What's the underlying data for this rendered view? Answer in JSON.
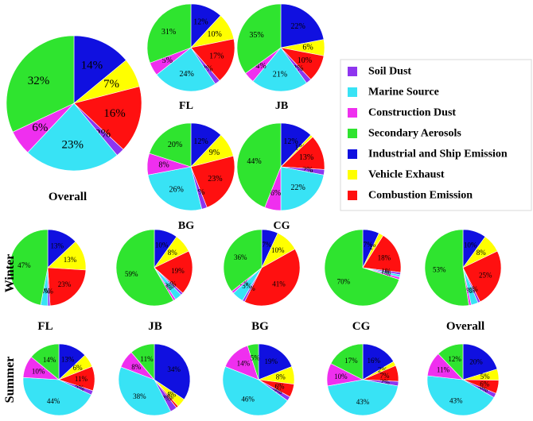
{
  "legend": {
    "items": [
      {
        "label": "Soil Dust",
        "color": "#8e35ef"
      },
      {
        "label": "Marine Source",
        "color": "#38e3f5"
      },
      {
        "label": "Construction Dust",
        "color": "#ef2fef"
      },
      {
        "label": "Secondary Aerosols",
        "color": "#2fe42f"
      },
      {
        "label": "Industrial and Ship Emission",
        "color": "#1010e0"
      },
      {
        "label": "Vehicle Exhaust",
        "color": "#ffff00"
      },
      {
        "label": "Combustion Emission",
        "color": "#ff1010"
      }
    ]
  },
  "season_labels": {
    "winter": "Winter",
    "summer": "Summer"
  },
  "chart_data": [
    {
      "type": "pie",
      "name": "Overall",
      "group": "annual",
      "slices": [
        {
          "source": "Industrial and Ship Emission",
          "value": 14,
          "label": "14%"
        },
        {
          "source": "Vehicle Exhaust",
          "value": 7,
          "label": "7%"
        },
        {
          "source": "Combustion Emission",
          "value": 16,
          "label": "16%"
        },
        {
          "source": "Soil Dust",
          "value": 2,
          "label": "2%"
        },
        {
          "source": "Marine Source",
          "value": 23,
          "label": "23%"
        },
        {
          "source": "Construction Dust",
          "value": 6,
          "label": "6%"
        },
        {
          "source": "Secondary Aerosols",
          "value": 32,
          "label": "32%"
        }
      ]
    },
    {
      "type": "pie",
      "name": "FL",
      "group": "annual",
      "slices": [
        {
          "source": "Industrial and Ship Emission",
          "value": 12,
          "label": "12%"
        },
        {
          "source": "Vehicle Exhaust",
          "value": 10,
          "label": "10%"
        },
        {
          "source": "Combustion Emission",
          "value": 17,
          "label": "17%"
        },
        {
          "source": "Soil Dust",
          "value": 2,
          "label": "2%"
        },
        {
          "source": "Marine Source",
          "value": 24,
          "label": "24%"
        },
        {
          "source": "Construction Dust",
          "value": 5,
          "label": "5%"
        },
        {
          "source": "Secondary Aerosols",
          "value": 31,
          "label": "31%"
        }
      ]
    },
    {
      "type": "pie",
      "name": "JB",
      "group": "annual",
      "slices": [
        {
          "source": "Industrial and Ship Emission",
          "value": 22,
          "label": "22%"
        },
        {
          "source": "Vehicle Exhaust",
          "value": 6,
          "label": "6%"
        },
        {
          "source": "Combustion Emission",
          "value": 10,
          "label": "10%"
        },
        {
          "source": "Soil Dust",
          "value": 2,
          "label": "2%"
        },
        {
          "source": "Marine Source",
          "value": 21,
          "label": "21%"
        },
        {
          "source": "Construction Dust",
          "value": 4,
          "label": "4%"
        },
        {
          "source": "Secondary Aerosols",
          "value": 35,
          "label": "35%"
        }
      ]
    },
    {
      "type": "pie",
      "name": "BG",
      "group": "annual",
      "slices": [
        {
          "source": "Industrial and Ship Emission",
          "value": 12,
          "label": "12%"
        },
        {
          "source": "Vehicle Exhaust",
          "value": 9,
          "label": "9%"
        },
        {
          "source": "Combustion Emission",
          "value": 23,
          "label": "23%"
        },
        {
          "source": "Soil Dust",
          "value": 2,
          "label": "2%"
        },
        {
          "source": "Marine Source",
          "value": 26,
          "label": "26%"
        },
        {
          "source": "Construction Dust",
          "value": 8,
          "label": "8%"
        },
        {
          "source": "Secondary Aerosols",
          "value": 20,
          "label": "20%"
        }
      ]
    },
    {
      "type": "pie",
      "name": "CG",
      "group": "annual",
      "slices": [
        {
          "source": "Industrial and Ship Emission",
          "value": 12,
          "label": "12%"
        },
        {
          "source": "Vehicle Exhaust",
          "value": 1,
          "label": "1%"
        },
        {
          "source": "Combustion Emission",
          "value": 13,
          "label": "13%"
        },
        {
          "source": "Soil Dust",
          "value": 2,
          "label": "2%"
        },
        {
          "source": "Marine Source",
          "value": 22,
          "label": "22%"
        },
        {
          "source": "Construction Dust",
          "value": 6,
          "label": "6%"
        },
        {
          "source": "Secondary Aerosols",
          "value": 44,
          "label": "44%"
        }
      ]
    },
    {
      "type": "pie",
      "name": "FL",
      "group": "winter",
      "slices": [
        {
          "source": "Industrial and Ship Emission",
          "value": 13,
          "label": "13%"
        },
        {
          "source": "Vehicle Exhaust",
          "value": 13,
          "label": "13%"
        },
        {
          "source": "Combustion Emission",
          "value": 23,
          "label": "23%"
        },
        {
          "source": "Soil Dust",
          "value": 1,
          "label": "1%"
        },
        {
          "source": "Marine Source",
          "value": 3,
          "label": "3%"
        },
        {
          "source": "Construction Dust",
          "value": 0,
          "label": "0%"
        },
        {
          "source": "Secondary Aerosols",
          "value": 47,
          "label": "47%"
        }
      ]
    },
    {
      "type": "pie",
      "name": "JB",
      "group": "winter",
      "slices": [
        {
          "source": "Industrial and Ship Emission",
          "value": 10,
          "label": "10%"
        },
        {
          "source": "Vehicle Exhaust",
          "value": 8,
          "label": "8%"
        },
        {
          "source": "Combustion Emission",
          "value": 19,
          "label": "19%"
        },
        {
          "source": "Soil Dust",
          "value": 1,
          "label": "1%"
        },
        {
          "source": "Marine Source",
          "value": 3,
          "label": "3%"
        },
        {
          "source": "Construction Dust",
          "value": 1,
          "label": "1%"
        },
        {
          "source": "Secondary Aerosols",
          "value": 59,
          "label": "59%"
        }
      ]
    },
    {
      "type": "pie",
      "name": "BG",
      "group": "winter",
      "slices": [
        {
          "source": "Industrial and Ship Emission",
          "value": 7,
          "label": "7%"
        },
        {
          "source": "Vehicle Exhaust",
          "value": 10,
          "label": "10%"
        },
        {
          "source": "Combustion Emission",
          "value": 41,
          "label": "41%"
        },
        {
          "source": "Soil Dust",
          "value": 1,
          "label": "1%"
        },
        {
          "source": "Marine Source",
          "value": 5,
          "label": "5%"
        },
        {
          "source": "Construction Dust",
          "value": 1,
          "label": "1%"
        },
        {
          "source": "Secondary Aerosols",
          "value": 36,
          "label": "36%"
        }
      ]
    },
    {
      "type": "pie",
      "name": "CG",
      "group": "winter",
      "slices": [
        {
          "source": "Industrial and Ship Emission",
          "value": 7,
          "label": "7%"
        },
        {
          "source": "Vehicle Exhaust",
          "value": 2,
          "label": "2%"
        },
        {
          "source": "Combustion Emission",
          "value": 18,
          "label": "18%"
        },
        {
          "source": "Soil Dust",
          "value": 1,
          "label": "1%"
        },
        {
          "source": "Marine Source",
          "value": 1,
          "label": "1%"
        },
        {
          "source": "Construction Dust",
          "value": 1,
          "label": "1%"
        },
        {
          "source": "Secondary Aerosols",
          "value": 70,
          "label": "70%"
        }
      ]
    },
    {
      "type": "pie",
      "name": "Overall",
      "group": "winter",
      "slices": [
        {
          "source": "Industrial and Ship Emission",
          "value": 10,
          "label": "10%"
        },
        {
          "source": "Vehicle Exhaust",
          "value": 8,
          "label": "8%"
        },
        {
          "source": "Combustion Emission",
          "value": 25,
          "label": "25%"
        },
        {
          "source": "Soil Dust",
          "value": 1,
          "label": "1%"
        },
        {
          "source": "Marine Source",
          "value": 3,
          "label": "3%"
        },
        {
          "source": "Construction Dust",
          "value": 1,
          "label": "1%"
        },
        {
          "source": "Secondary Aerosols",
          "value": 53,
          "label": "53%"
        }
      ]
    },
    {
      "type": "pie",
      "name": "FL",
      "group": "summer",
      "slices": [
        {
          "source": "Industrial and Ship Emission",
          "value": 13,
          "label": "13%"
        },
        {
          "source": "Vehicle Exhaust",
          "value": 6,
          "label": "6%"
        },
        {
          "source": "Combustion Emission",
          "value": 11,
          "label": "11%"
        },
        {
          "source": "Soil Dust",
          "value": 2,
          "label": "2%"
        },
        {
          "source": "Marine Source",
          "value": 44,
          "label": "44%"
        },
        {
          "source": "Construction Dust",
          "value": 10,
          "label": "10%"
        },
        {
          "source": "Secondary Aerosols",
          "value": 14,
          "label": "14%"
        }
      ]
    },
    {
      "type": "pie",
      "name": "JB",
      "group": "summer",
      "slices": [
        {
          "source": "Industrial and Ship Emission",
          "value": 34,
          "label": "34%"
        },
        {
          "source": "Vehicle Exhaust",
          "value": 4,
          "label": "4%"
        },
        {
          "source": "Combustion Emission",
          "value": 1,
          "label": "1%"
        },
        {
          "source": "Soil Dust",
          "value": 3,
          "label": "3%"
        },
        {
          "source": "Marine Source",
          "value": 38,
          "label": "38%"
        },
        {
          "source": "Construction Dust",
          "value": 8,
          "label": "8%"
        },
        {
          "source": "Secondary Aerosols",
          "value": 11,
          "label": "11%"
        }
      ]
    },
    {
      "type": "pie",
      "name": "BG",
      "group": "summer",
      "slices": [
        {
          "source": "Industrial and Ship Emission",
          "value": 19,
          "label": "19%"
        },
        {
          "source": "Vehicle Exhaust",
          "value": 8,
          "label": "8%"
        },
        {
          "source": "Combustion Emission",
          "value": 6,
          "label": "6%"
        },
        {
          "source": "Soil Dust",
          "value": 2,
          "label": "2%"
        },
        {
          "source": "Marine Source",
          "value": 46,
          "label": "46%"
        },
        {
          "source": "Construction Dust",
          "value": 14,
          "label": "14%"
        },
        {
          "source": "Secondary Aerosols",
          "value": 5,
          "label": "5%"
        }
      ]
    },
    {
      "type": "pie",
      "name": "CG",
      "group": "summer",
      "slices": [
        {
          "source": "Industrial and Ship Emission",
          "value": 16,
          "label": "16%"
        },
        {
          "source": "Vehicle Exhaust",
          "value": 2,
          "label": "2%"
        },
        {
          "source": "Combustion Emission",
          "value": 7,
          "label": "7%"
        },
        {
          "source": "Soil Dust",
          "value": 2,
          "label": "2%"
        },
        {
          "source": "Marine Source",
          "value": 43,
          "label": "43%"
        },
        {
          "source": "Construction Dust",
          "value": 10,
          "label": "10%"
        },
        {
          "source": "Secondary Aerosols",
          "value": 17,
          "label": "17%"
        }
      ]
    },
    {
      "type": "pie",
      "name": "Overall",
      "group": "summer",
      "slices": [
        {
          "source": "Industrial and Ship Emission",
          "value": 20,
          "label": "20%"
        },
        {
          "source": "Vehicle Exhaust",
          "value": 5,
          "label": "5%"
        },
        {
          "source": "Combustion Emission",
          "value": 6,
          "label": "6%"
        },
        {
          "source": "Soil Dust",
          "value": 2,
          "label": "2%"
        },
        {
          "source": "Marine Source",
          "value": 43,
          "label": "43%"
        },
        {
          "source": "Construction Dust",
          "value": 11,
          "label": "11%"
        },
        {
          "source": "Secondary Aerosols",
          "value": 12,
          "label": "12%"
        }
      ]
    }
  ]
}
